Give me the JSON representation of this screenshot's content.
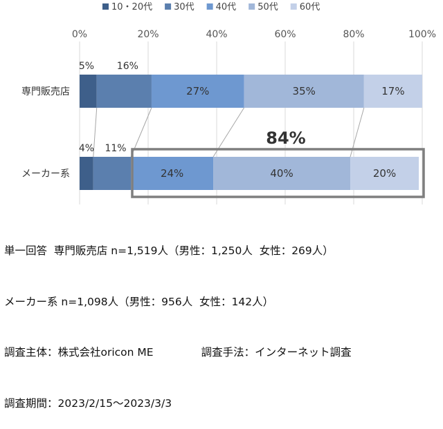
{
  "chart_data": {
    "type": "bar",
    "orientation": "horizontal",
    "stacked": true,
    "normalized": true,
    "categories": [
      "専門販売店",
      "メーカー系"
    ],
    "series": [
      {
        "name": "10・20代",
        "values": [
          5,
          4
        ],
        "labels": [
          "5%",
          "4%"
        ],
        "color": "#3e5f8a"
      },
      {
        "name": "30代",
        "values": [
          16,
          11
        ],
        "labels": [
          "16%",
          "11%"
        ],
        "color": "#5b7fae"
      },
      {
        "name": "40代",
        "values": [
          27,
          24
        ],
        "labels": [
          "27%",
          "24%"
        ],
        "color": "#6e98d0"
      },
      {
        "name": "50代",
        "values": [
          35,
          40
        ],
        "labels": [
          "35%",
          "40%"
        ],
        "color": "#a1b7d9"
      },
      {
        "name": "60代",
        "values": [
          17,
          20
        ],
        "labels": [
          "17%",
          "20%"
        ],
        "color": "#c3d0e8"
      }
    ],
    "ticks": [
      "0%",
      "20%",
      "40%",
      "60%",
      "80%",
      "100%"
    ],
    "xlim": [
      0,
      100
    ],
    "legend_position": "top",
    "grid": true,
    "highlight": {
      "label": "84%",
      "category": "メーカー系",
      "from": 15,
      "to": 100,
      "border_color": "#7f7f7f"
    }
  },
  "notes": [
    "単一回答  専門販売店 n=1,519人（男性：1,250人  女性：269人）",
    "メーカー系 n=1,098人（男性：956人  女性：142人）",
    "調査主体：株式会社oricon ME              調査手法：インターネット調査",
    "調査期間：2023/2/15～2023/3/3"
  ]
}
